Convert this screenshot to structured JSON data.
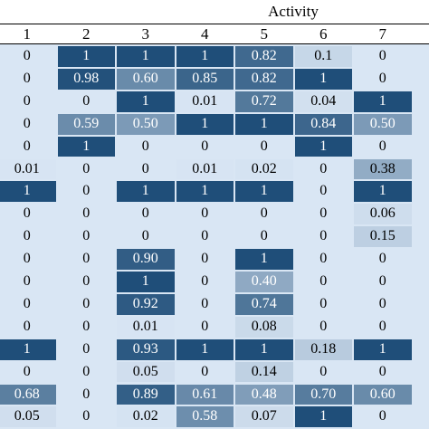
{
  "table": {
    "title": "Activity",
    "columns": [
      "1",
      "2",
      "3",
      "4",
      "5",
      "6",
      "7"
    ],
    "rows": [
      [
        "0",
        "1",
        "1",
        "1",
        "0.82",
        "0.1",
        "0"
      ],
      [
        "0",
        "0.98",
        "0.60",
        "0.85",
        "0.82",
        "1",
        "0"
      ],
      [
        "0",
        "0",
        "1",
        "0.01",
        "0.72",
        "0.04",
        "1"
      ],
      [
        "0",
        "0.59",
        "0.50",
        "1",
        "1",
        "0.84",
        "0.50"
      ],
      [
        "0",
        "1",
        "0",
        "0",
        "0",
        "1",
        "0"
      ],
      [
        "0.01",
        "0",
        "0",
        "0.01",
        "0.02",
        "0",
        "0.38"
      ],
      [
        "1",
        "0",
        "1",
        "1",
        "1",
        "0",
        "1"
      ],
      [
        "0",
        "0",
        "0",
        "0",
        "0",
        "0",
        "0.06"
      ],
      [
        "0",
        "0",
        "0",
        "0",
        "0",
        "0",
        "0.15"
      ],
      [
        "0",
        "0",
        "0.90",
        "0",
        "1",
        "0",
        "0"
      ],
      [
        "0",
        "0",
        "1",
        "0",
        "0.40",
        "0",
        "0"
      ],
      [
        "0",
        "0",
        "0.92",
        "0",
        "0.74",
        "0",
        "0"
      ],
      [
        "0",
        "0",
        "0.01",
        "0",
        "0.08",
        "0",
        "0"
      ],
      [
        "1",
        "0",
        "0.93",
        "1",
        "1",
        "0.18",
        "1"
      ],
      [
        "0",
        "0",
        "0.05",
        "0",
        "0.14",
        "0",
        "0"
      ],
      [
        "0.68",
        "0",
        "0.89",
        "0.61",
        "0.48",
        "0.70",
        "0.60"
      ],
      [
        "0.05",
        "0",
        "0.02",
        "0.58",
        "0.07",
        "1",
        "0"
      ]
    ]
  }
}
